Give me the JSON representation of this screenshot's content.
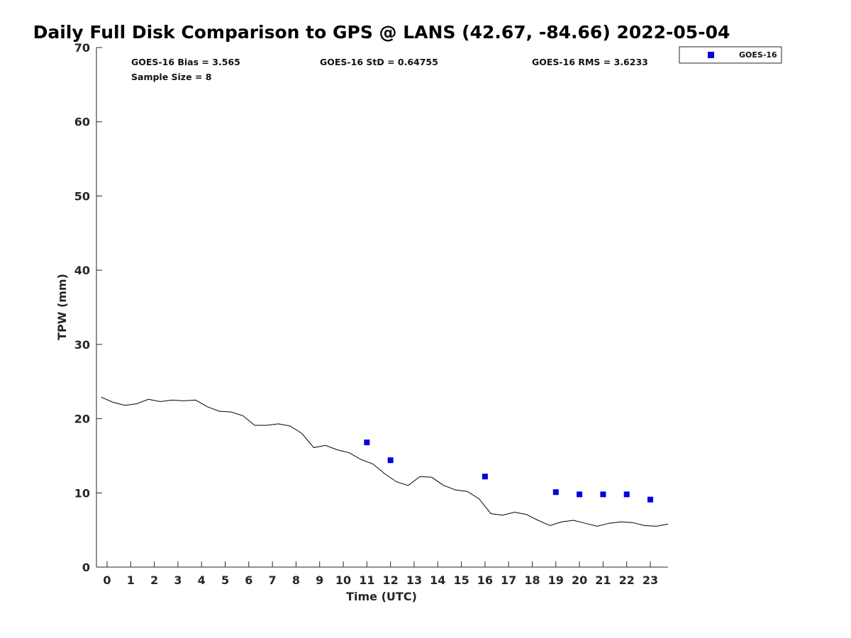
{
  "chart_data": {
    "type": "line+scatter",
    "title": "Daily Full Disk Comparison to GPS @ LANS (42.67, -84.66) 2022-05-04",
    "xlabel": "Time (UTC)",
    "ylabel": "TPW (mm)",
    "xlim": [
      -0.45,
      23.75
    ],
    "ylim": [
      0,
      70
    ],
    "xticks": [
      0,
      1,
      2,
      3,
      4,
      5,
      6,
      7,
      8,
      9,
      10,
      11,
      12,
      13,
      14,
      15,
      16,
      17,
      18,
      19,
      20,
      21,
      22,
      23
    ],
    "yticks": [
      0,
      10,
      20,
      30,
      40,
      50,
      60,
      70
    ],
    "stats": {
      "bias": "GOES-16 Bias = 3.565",
      "std": "GOES-16 StD = 0.64755",
      "rms": "GOES-16 RMS = 3.6233",
      "sample": "Sample Size = 8"
    },
    "legend": {
      "position": "top-right-outside",
      "label": "GOES-16",
      "color": "#0000e0"
    },
    "gps_series": {
      "name": "GPS",
      "color": "#000000",
      "x": [
        -0.25,
        0.25,
        0.75,
        1.25,
        1.75,
        2.25,
        2.75,
        3.25,
        3.75,
        4.25,
        4.75,
        5.25,
        5.75,
        6.25,
        6.75,
        7.25,
        7.75,
        8.25,
        8.75,
        9.25,
        9.75,
        10.25,
        10.75,
        11.25,
        11.75,
        12.25,
        12.75,
        13.25,
        13.75,
        14.25,
        14.75,
        15.25,
        15.75,
        16.25,
        16.75,
        17.25,
        17.75,
        18.25,
        18.75,
        19.25,
        19.75,
        20.25,
        20.75,
        21.25,
        21.75,
        22.25,
        22.75,
        23.25,
        23.75
      ],
      "y": [
        22.9,
        22.2,
        21.8,
        22.0,
        22.6,
        22.3,
        22.5,
        22.4,
        22.5,
        21.6,
        21.0,
        20.9,
        20.4,
        19.1,
        19.1,
        19.3,
        19.0,
        18.0,
        16.1,
        16.4,
        15.8,
        15.4,
        14.5,
        13.9,
        12.6,
        11.5,
        11.0,
        12.2,
        12.1,
        11.0,
        10.4,
        10.2,
        9.2,
        7.2,
        7.0,
        7.4,
        7.1,
        6.3,
        5.6,
        6.1,
        6.3,
        5.9,
        5.5,
        5.9,
        6.1,
        6.0,
        5.6,
        5.5,
        5.8
      ]
    },
    "goes_series": {
      "name": "GOES-16",
      "color": "#0000e0",
      "x": [
        11,
        12,
        16,
        19,
        20,
        21,
        22,
        23
      ],
      "y": [
        16.8,
        14.4,
        12.2,
        10.1,
        9.8,
        9.8,
        9.8,
        9.1
      ]
    }
  }
}
